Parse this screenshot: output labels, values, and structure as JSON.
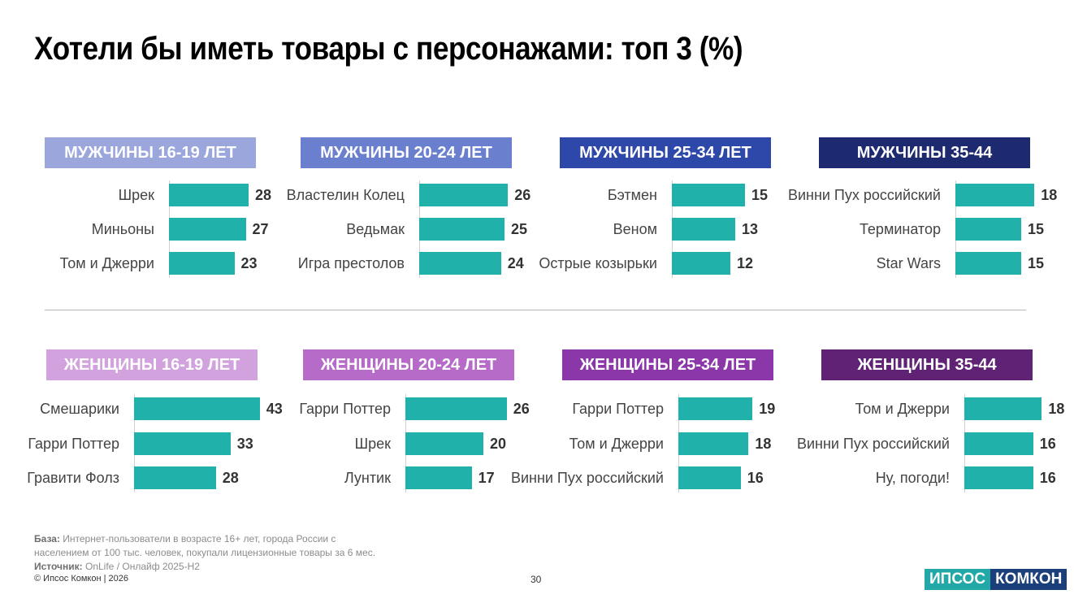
{
  "title": "Хотели бы иметь товары с персонажами: топ 3 (%)",
  "colors": {
    "bar": "#20b2aa"
  },
  "chart_data": [
    {
      "type": "bar",
      "title": "МУЖЧИНЫ 16-19 ЛЕТ",
      "header_color": "#9aa6dc",
      "categories": [
        "Шрек",
        "Миньоны",
        "Том и Джерри"
      ],
      "values": [
        28,
        27,
        23
      ]
    },
    {
      "type": "bar",
      "title": "МУЖЧИНЫ 20-24 ЛЕТ",
      "header_color": "#6a80cf",
      "categories": [
        "Властелин Колец",
        "Ведьмак",
        "Игра престолов"
      ],
      "values": [
        26,
        25,
        24
      ]
    },
    {
      "type": "bar",
      "title": "МУЖЧИНЫ 25-34 ЛЕТ",
      "header_color": "#2d48a8",
      "categories": [
        "Бэтмен",
        "Веном",
        "Острые козырьки"
      ],
      "values": [
        15,
        13,
        12
      ]
    },
    {
      "type": "bar",
      "title": "МУЖЧИНЫ 35-44",
      "header_color": "#1d2a6f",
      "categories": [
        "Винни Пух российский",
        "Терминатор",
        "Star Wars"
      ],
      "values": [
        18,
        15,
        15
      ]
    },
    {
      "type": "bar",
      "title": "ЖЕНЩИНЫ 16-19 ЛЕТ",
      "header_color": "#d1a2dd",
      "categories": [
        "Смешарики",
        "Гарри Поттер",
        "Гравити Фолз"
      ],
      "values": [
        43,
        33,
        28
      ]
    },
    {
      "type": "bar",
      "title": "ЖЕНЩИНЫ 20-24 ЛЕТ",
      "header_color": "#b56bc7",
      "categories": [
        "Гарри Поттер",
        "Шрек",
        "Лунтик"
      ],
      "values": [
        26,
        20,
        17
      ]
    },
    {
      "type": "bar",
      "title": "ЖЕНЩИНЫ 25-34 ЛЕТ",
      "header_color": "#8b36a9",
      "categories": [
        "Гарри Поттер",
        "Том и Джерри",
        "Винни Пух российский"
      ],
      "values": [
        19,
        18,
        16
      ]
    },
    {
      "type": "bar",
      "title": "ЖЕНЩИНЫ 35-44",
      "header_color": "#5f2275",
      "categories": [
        "Том и Джерри",
        "Винни Пух российский",
        "Ну, погоди!"
      ],
      "values": [
        18,
        16,
        16
      ]
    }
  ],
  "footer": {
    "base_label": "База:",
    "base_text": "Интернет-пользователи в возрасте 16+ лет, города России с",
    "base_text_2": "населением от 100 тыс. человек, покупали лицензионные товары за 6 мес.",
    "source_label": "Источник:",
    "source_text": "OnLife / Онлайф 2025-H2",
    "copyright": "© Ипсос Комкон | 2026",
    "page_number": "30"
  },
  "logo": {
    "part1": "ИПСОС",
    "part2": "КОМКОН"
  }
}
